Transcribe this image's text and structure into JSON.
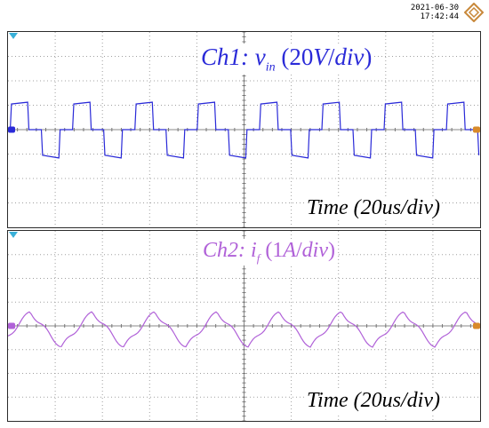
{
  "header": {
    "date": "2021-06-30",
    "time": "17:42:44"
  },
  "colors": {
    "ch1": "#2a2ad8",
    "ch2": "#b061d8",
    "grid": "#a0a0a0",
    "marker": "#d88a2a",
    "logo": "#c8883a"
  },
  "panels": [
    {
      "channel": "Ch1",
      "colon": ":",
      "var_main": "v",
      "var_sub": "in",
      "scale_num": "20",
      "scale_unit": "V",
      "scale_slash": "/",
      "scale_div": "div",
      "time_label": "Time (20us/div)"
    },
    {
      "channel": "Ch2",
      "colon": ":",
      "var_main": "i",
      "var_sub": "f",
      "scale_num": "1",
      "scale_unit": "A",
      "scale_slash": "/",
      "scale_div": "div",
      "time_label": "Time (20us/div)"
    }
  ],
  "scope": {
    "horizontal_divisions": 10,
    "vertical_divisions": 8,
    "time_per_div_us": 20,
    "period_divisions": 1.32
  },
  "chart_data": [
    {
      "type": "line",
      "series_waveform": "three-level square wave",
      "levels_div": [
        2.1,
        0,
        -2.1
      ],
      "period_div": 1.32,
      "cycles_visible": 7.5
    },
    {
      "type": "line",
      "series_waveform": "triangular ripple current",
      "amplitude_div": 1.5,
      "period_div": 1.32,
      "cycles_visible": 7.5
    }
  ]
}
